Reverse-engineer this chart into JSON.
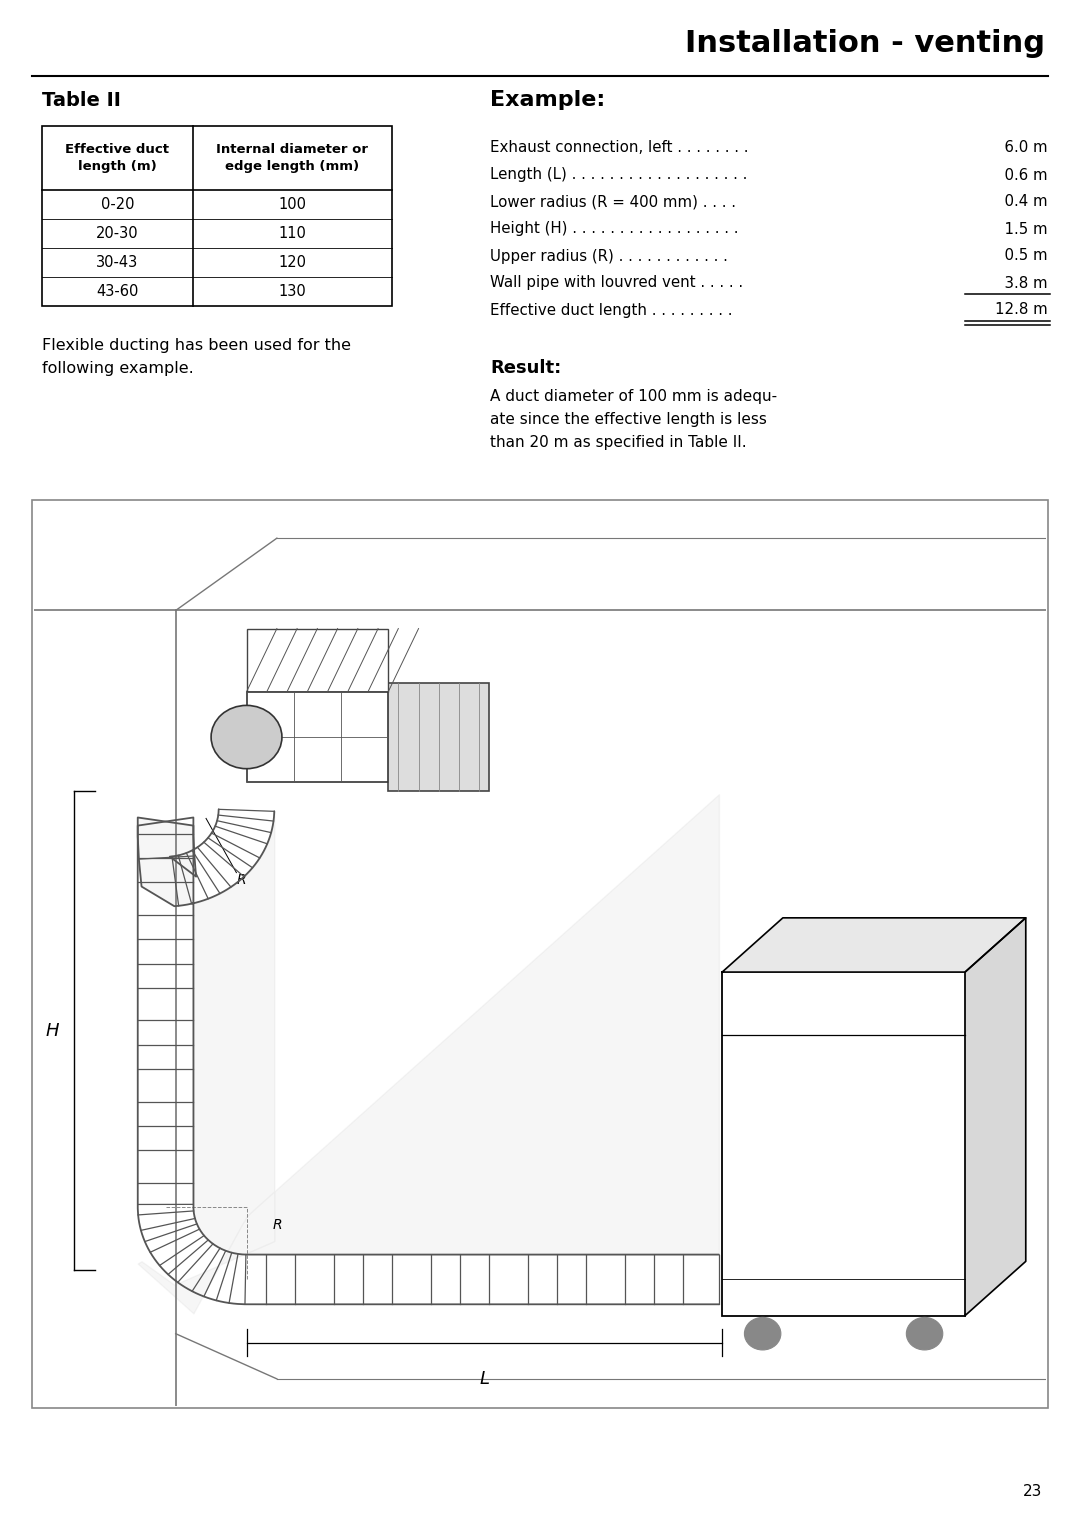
{
  "page_title": "Installation - venting",
  "page_number": "23",
  "background_color": "#ffffff",
  "table_title": "Table II",
  "table_col1_header": "Effective duct\nlength (m)",
  "table_col2_header": "Internal diameter or\nedge length (mm)",
  "table_rows": [
    [
      "0-20",
      "100"
    ],
    [
      "20-30",
      "110"
    ],
    [
      "30-43",
      "120"
    ],
    [
      "43-60",
      "130"
    ]
  ],
  "flexible_text": "Flexible ducting has been used for the\nfollowing example.",
  "example_title": "Example:",
  "example_lines": [
    {
      "label": "Exhaust connection, left . . . . . . . .",
      "value": "  6.0 m",
      "underline": false,
      "double_underline": false
    },
    {
      "label": "Length (L) . . . . . . . . . . . . . . . . . . .",
      "value": "  0.6 m",
      "underline": false,
      "double_underline": false
    },
    {
      "label": "Lower radius (R = 400 mm) . . . .",
      "value": "  0.4 m",
      "underline": false,
      "double_underline": false
    },
    {
      "label": "Height (H) . . . . . . . . . . . . . . . . . .",
      "value": "  1.5 m",
      "underline": false,
      "double_underline": false
    },
    {
      "label": "Upper radius (R) . . . . . . . . . . . .",
      "value": "  0.5 m",
      "underline": false,
      "double_underline": false
    },
    {
      "label": "Wall pipe with louvred vent . . . . .",
      "value": "  3.8 m",
      "underline": true,
      "double_underline": false
    },
    {
      "label": "Effective duct length . . . . . . . . .",
      "value": "12.8 m",
      "underline": true,
      "double_underline": true
    }
  ],
  "result_title": "Result:",
  "result_text": "A duct diameter of 100 mm is adequ-\nate since the effective length is less\nthan 20 m as specified in Table II.",
  "diagram_box_color": "#f0f0f0",
  "diagram_wall_color": "#888888",
  "diagram_duct_color": "#555555",
  "diagram_label_H": "H",
  "diagram_label_R": "R",
  "diagram_label_L": "L"
}
